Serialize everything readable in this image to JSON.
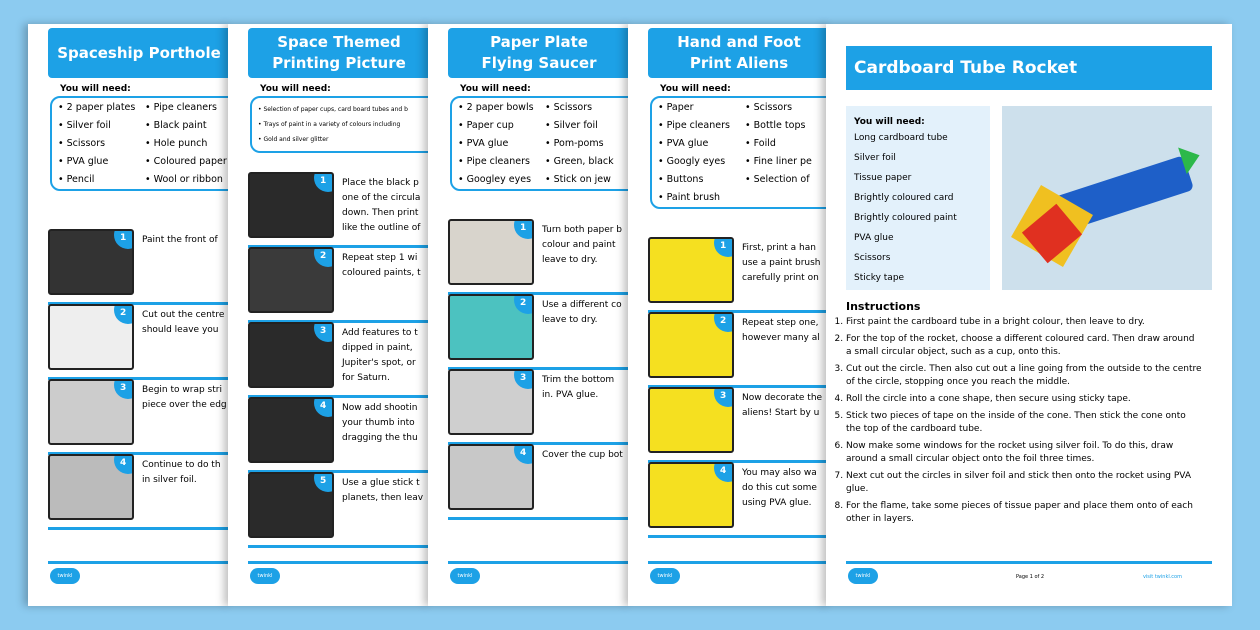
{
  "need_label": "You will need:",
  "logo_text": "twinkl",
  "pages": [
    {
      "title": "Spaceship Porthole",
      "items": [
        "2 paper plates",
        "Pipe cleaners",
        "Silver foil",
        "Black paint",
        "Scissors",
        "Hole punch",
        "PVA glue",
        "Coloured paper",
        "Pencil",
        "Wool or ribbon"
      ],
      "steps": [
        {
          "n": "1",
          "text": "Paint the front of",
          "color": "#333"
        },
        {
          "n": "2",
          "text": "Cut out the centre\nshould leave you",
          "color": "#eee"
        },
        {
          "n": "3",
          "text": "Begin to wrap stri\npiece over the edg",
          "color": "#ccc"
        },
        {
          "n": "4",
          "text": "Continue to do th\nin silver foil.",
          "color": "#bbb"
        }
      ]
    },
    {
      "title": "Space Themed\nPrinting Picture",
      "items": [
        "Selection of paper cups, card board tubes and b",
        "Trays of paint in a variety of colours including",
        "Gold and silver glitter"
      ],
      "steps": [
        {
          "n": "1",
          "text": "Place the black p\none of the circula\ndown. Then print\nlike the outline of",
          "color": "#2a2a2a"
        },
        {
          "n": "2",
          "text": "Repeat step 1 wi\ncoloured paints, t",
          "color": "#3a3a3a"
        },
        {
          "n": "3",
          "text": "Add features to t\ndipped in paint,\nJupiter's spot, or\nfor Saturn.",
          "color": "#2a2a2a"
        },
        {
          "n": "4",
          "text": "Now add shootin\nyour thumb into\ndragging the thu",
          "color": "#2a2a2a"
        },
        {
          "n": "5",
          "text": "Use a glue stick t\nplanets, then leav",
          "color": "#2a2a2a"
        }
      ]
    },
    {
      "title": "Paper Plate\nFlying Saucer",
      "items": [
        "2 paper bowls",
        "Scissors",
        "Paper cup",
        "Silver foil",
        "PVA glue",
        "Pom-poms",
        "Pipe cleaners",
        "Green, black",
        "Googley eyes",
        "Stick on jew"
      ],
      "steps": [
        {
          "n": "1",
          "text": "Turn both paper b\ncolour and paint\nleave to dry.",
          "color": "#d8d4cc"
        },
        {
          "n": "2",
          "text": "Use a different co\nleave to dry.",
          "color": "#4cc2c0"
        },
        {
          "n": "3",
          "text": "Trim the bottom\nin. PVA glue.",
          "color": "#cfcfcf"
        },
        {
          "n": "4",
          "text": "Cover the cup bot",
          "color": "#c8c8c8"
        }
      ]
    },
    {
      "title": "Hand and Foot\nPrint Aliens",
      "items": [
        "Paper",
        "Scissors",
        "Pipe cleaners",
        "Bottle tops",
        "PVA glue",
        "Foild",
        "Googly eyes",
        "Fine liner pe",
        "Buttons",
        "Selection of",
        "Paint brush"
      ],
      "steps": [
        {
          "n": "1",
          "text": "First, print a han\nuse a paint brush\ncarefully print on",
          "color": "#f5e020"
        },
        {
          "n": "2",
          "text": "Repeat step one,\nhowever many al",
          "color": "#f5e020"
        },
        {
          "n": "3",
          "text": "Now decorate the\naliens! Start by u",
          "color": "#f5e020"
        },
        {
          "n": "4",
          "text": "You may also wa\ndo this cut some\nusing PVA glue.",
          "color": "#f5e020"
        }
      ]
    }
  ],
  "main": {
    "title": "Cardboard Tube Rocket",
    "items": [
      "Long cardboard tube",
      "Silver foil",
      "Tissue paper",
      "Brightly coloured card",
      "Brightly coloured paint",
      "PVA glue",
      "Scissors",
      "Sticky tape"
    ],
    "instructions_label": "Instructions",
    "instructions": [
      "First paint the cardboard tube in a bright colour, then leave to dry.",
      "For the top of the rocket, choose a different coloured card. Then draw around a small circular object, such as a cup, onto this.",
      "Cut out the circle. Then also cut out a line going from the outside to the centre of the circle, stopping once you reach the middle.",
      "Roll the circle into a cone shape, then secure using sticky tape.",
      "Stick two pieces of tape on the inside of the cone. Then stick the cone onto the top of the cardboard tube.",
      "Now make some windows for the rocket using silver foil. To do this, draw around a small circular object onto the foil three times.",
      "Next cut out the circles in silver foil and stick then onto the rocket using PVA glue.",
      "For the flame, take some pieces of tissue paper and place them onto of each other in layers."
    ],
    "page_label": "Page 1 of 2",
    "site": "visit twinkl.com"
  },
  "colors": {
    "accent": "#1da1e6",
    "background": "#8ccbf0"
  }
}
